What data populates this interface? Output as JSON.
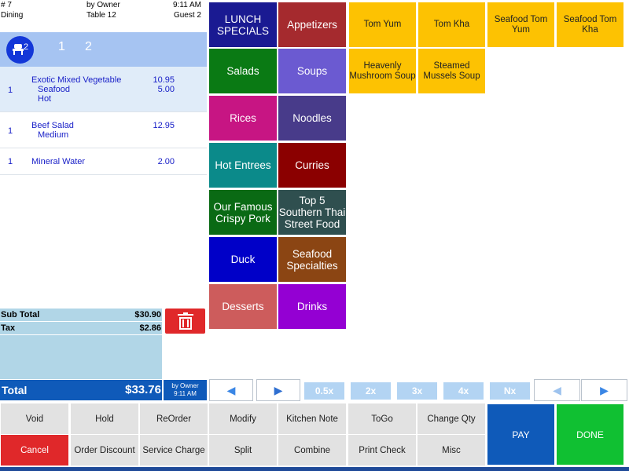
{
  "order": {
    "number": "# 7",
    "server": "by Owner",
    "time": "9:11 AM",
    "type": "Dining",
    "table": "Table 12",
    "guests": "Guest 2"
  },
  "seats": {
    "count": "2",
    "tabs": [
      "1",
      "2"
    ]
  },
  "items": [
    {
      "qty": "1",
      "name": "Exotic Mixed Vegetable",
      "price": "10.95",
      "modifiers": [
        {
          "name": "Seafood",
          "price": "5.00"
        },
        {
          "name": "Hot",
          "price": ""
        }
      ]
    },
    {
      "qty": "1",
      "name": "Beef Salad",
      "price": "12.95",
      "modifiers": [
        {
          "name": "Medium",
          "price": ""
        }
      ]
    },
    {
      "qty": "1",
      "name": "Mineral Water",
      "price": "2.00",
      "modifiers": []
    }
  ],
  "totals": {
    "subtotal_label": "Sub Total",
    "subtotal": "$30.90",
    "tax_label": "Tax",
    "tax": "$2.86",
    "total_label": "Total",
    "total": "$33.76",
    "by_owner": "by Owner",
    "by_owner_time": "9:11 AM"
  },
  "categories": [
    {
      "label": "LUNCH SPECIALS",
      "color": "#1a1a92"
    },
    {
      "label": "Appetizers",
      "color": "#a52a2e"
    },
    {
      "label": "Salads",
      "color": "#0a7a14"
    },
    {
      "label": "Soups",
      "color": "#6b5ad1"
    },
    {
      "label": "Rices",
      "color": "#c71583"
    },
    {
      "label": "Noodles",
      "color": "#483b8a"
    },
    {
      "label": "Hot Entrees",
      "color": "#0b8a8a"
    },
    {
      "label": "Curries",
      "color": "#8b0000"
    },
    {
      "label": "Our Famous Crispy Pork",
      "color": "#0a6a14"
    },
    {
      "label": "Top 5 Southern Thai Street Food",
      "color": "#2f4f4f"
    },
    {
      "label": "Duck",
      "color": "#0000c8"
    },
    {
      "label": "Seafood Specialties",
      "color": "#8b4513"
    },
    {
      "label": "Desserts",
      "color": "#cd5c5c"
    },
    {
      "label": "Drinks",
      "color": "#9400d3"
    }
  ],
  "menu_items": [
    "Tom Yum",
    "Tom Kha",
    "Seafood Tom Yum",
    "Seafood Tom Kha",
    "Heavenly Mushroom Soup",
    "Steamed Mussels Soup"
  ],
  "nav": {
    "prev": "◀",
    "next": "▶",
    "prev2": "◀",
    "next2": "▶",
    "multipliers": [
      "0.5x",
      "2x",
      "3x",
      "4x",
      "Nx"
    ]
  },
  "actions": {
    "void": "Void",
    "hold": "Hold",
    "reorder": "ReOrder",
    "modify": "Modify",
    "kitchen_note": "Kitchen Note",
    "togo": "ToGo",
    "change_qty": "Change Qty",
    "cancel": "Cancel",
    "order_discount": "Order Discount",
    "service_charge": "Service Charge",
    "split": "Split",
    "combine": "Combine",
    "print_check": "Print Check",
    "misc": "Misc",
    "pay": "PAY",
    "done": "DONE"
  },
  "colors": {
    "menu_item": "#fdc202",
    "pay": "#0f5ab9",
    "done": "#10c032",
    "cancel": "#e0282a"
  }
}
